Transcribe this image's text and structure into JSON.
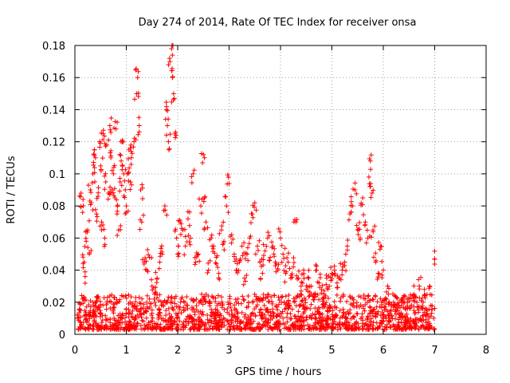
{
  "chart_data": {
    "type": "scatter",
    "title": "Day 274 of 2014, Rate Of TEC Index for receiver onsa",
    "xlabel": "GPS time / hours",
    "ylabel": "ROTI / TECUs",
    "xlim": [
      0,
      8
    ],
    "ylim": [
      0,
      0.18
    ],
    "xticks": [
      0,
      1,
      2,
      3,
      4,
      5,
      6,
      7,
      8
    ],
    "yticks": [
      0,
      0.02,
      0.04,
      0.06,
      0.08,
      0.1,
      0.12,
      0.14,
      0.16,
      0.18
    ],
    "xtick_labels": [
      "0",
      "1",
      "2",
      "3",
      "4",
      "5",
      "6",
      "7",
      "8"
    ],
    "ytick_labels": [
      "0",
      "0.02",
      "0.04",
      "0.06",
      "0.08",
      "0.1",
      "0.12",
      "0.14",
      "0.16",
      "0.18"
    ],
    "grid": true,
    "marker": "+",
    "color": "#ff0000",
    "series": [
      {
        "name": "ROTI",
        "points": [
          [
            0.05,
            0.012
          ],
          [
            0.1,
            0.015
          ],
          [
            0.12,
            0.088
          ],
          [
            0.15,
            0.076
          ],
          [
            0.18,
            0.045
          ],
          [
            0.2,
            0.036
          ],
          [
            0.22,
            0.058
          ],
          [
            0.25,
            0.065
          ],
          [
            0.28,
            0.05
          ],
          [
            0.3,
            0.09
          ],
          [
            0.32,
            0.082
          ],
          [
            0.35,
            0.1
          ],
          [
            0.38,
            0.115
          ],
          [
            0.4,
            0.11
          ],
          [
            0.42,
            0.075
          ],
          [
            0.45,
            0.086
          ],
          [
            0.48,
            0.12
          ],
          [
            0.5,
            0.105
          ],
          [
            0.52,
            0.07
          ],
          [
            0.55,
            0.125
          ],
          [
            0.58,
            0.06
          ],
          [
            0.6,
            0.095
          ],
          [
            0.62,
            0.118
          ],
          [
            0.65,
            0.088
          ],
          [
            0.68,
            0.13
          ],
          [
            0.7,
            0.11
          ],
          [
            0.72,
            0.09
          ],
          [
            0.75,
            0.1
          ],
          [
            0.78,
            0.085
          ],
          [
            0.8,
            0.128
          ],
          [
            0.82,
            0.075
          ],
          [
            0.85,
            0.065
          ],
          [
            0.88,
            0.095
          ],
          [
            0.9,
            0.108
          ],
          [
            0.92,
            0.12
          ],
          [
            0.95,
            0.1
          ],
          [
            0.98,
            0.09
          ],
          [
            1.0,
            0.08
          ],
          [
            1.02,
            0.1
          ],
          [
            1.05,
            0.115
          ],
          [
            1.08,
            0.095
          ],
          [
            1.1,
            0.11
          ],
          [
            1.15,
            0.12
          ],
          [
            1.2,
            0.15
          ],
          [
            1.22,
            0.16
          ],
          [
            1.25,
            0.13
          ],
          [
            1.28,
            0.09
          ],
          [
            1.3,
            0.07
          ],
          [
            1.35,
            0.045
          ],
          [
            1.4,
            0.04
          ],
          [
            1.45,
            0.048
          ],
          [
            1.5,
            0.03
          ],
          [
            1.55,
            0.025
          ],
          [
            1.6,
            0.035
          ],
          [
            1.65,
            0.045
          ],
          [
            1.7,
            0.05
          ],
          [
            1.75,
            0.08
          ],
          [
            1.78,
            0.14
          ],
          [
            1.8,
            0.13
          ],
          [
            1.82,
            0.12
          ],
          [
            1.85,
            0.17
          ],
          [
            1.88,
            0.178
          ],
          [
            1.9,
            0.16
          ],
          [
            1.92,
            0.15
          ],
          [
            1.95,
            0.125
          ],
          [
            1.98,
            0.06
          ],
          [
            2.0,
            0.05
          ],
          [
            2.05,
            0.07
          ],
          [
            2.1,
            0.065
          ],
          [
            2.15,
            0.055
          ],
          [
            2.2,
            0.072
          ],
          [
            2.25,
            0.06
          ],
          [
            2.3,
            0.1
          ],
          [
            2.35,
            0.045
          ],
          [
            2.4,
            0.05
          ],
          [
            2.45,
            0.08
          ],
          [
            2.5,
            0.112
          ],
          [
            2.52,
            0.085
          ],
          [
            2.55,
            0.07
          ],
          [
            2.6,
            0.04
          ],
          [
            2.65,
            0.06
          ],
          [
            2.7,
            0.055
          ],
          [
            2.75,
            0.048
          ],
          [
            2.8,
            0.038
          ],
          [
            2.85,
            0.065
          ],
          [
            2.9,
            0.058
          ],
          [
            2.95,
            0.08
          ],
          [
            3.0,
            0.094
          ],
          [
            3.05,
            0.062
          ],
          [
            3.1,
            0.05
          ],
          [
            3.15,
            0.04
          ],
          [
            3.2,
            0.045
          ],
          [
            3.25,
            0.055
          ],
          [
            3.3,
            0.035
          ],
          [
            3.35,
            0.05
          ],
          [
            3.4,
            0.06
          ],
          [
            3.45,
            0.075
          ],
          [
            3.5,
            0.082
          ],
          [
            3.55,
            0.055
          ],
          [
            3.6,
            0.045
          ],
          [
            3.65,
            0.038
          ],
          [
            3.7,
            0.052
          ],
          [
            3.75,
            0.06
          ],
          [
            3.8,
            0.048
          ],
          [
            3.85,
            0.055
          ],
          [
            3.9,
            0.045
          ],
          [
            3.95,
            0.04
          ],
          [
            4.0,
            0.06
          ],
          [
            4.05,
            0.05
          ],
          [
            4.1,
            0.038
          ],
          [
            4.15,
            0.045
          ],
          [
            4.2,
            0.035
          ],
          [
            4.25,
            0.042
          ],
          [
            4.3,
            0.07
          ],
          [
            4.35,
            0.035
          ],
          [
            4.4,
            0.03
          ],
          [
            4.45,
            0.04
          ],
          [
            4.5,
            0.028
          ],
          [
            4.55,
            0.035
          ],
          [
            4.6,
            0.03
          ],
          [
            4.65,
            0.025
          ],
          [
            4.7,
            0.04
          ],
          [
            4.75,
            0.032
          ],
          [
            4.8,
            0.028
          ],
          [
            4.85,
            0.025
          ],
          [
            4.9,
            0.035
          ],
          [
            4.95,
            0.03
          ],
          [
            5.0,
            0.038
          ],
          [
            5.05,
            0.04
          ],
          [
            5.1,
            0.032
          ],
          [
            5.15,
            0.035
          ],
          [
            5.2,
            0.04
          ],
          [
            5.25,
            0.045
          ],
          [
            5.3,
            0.055
          ],
          [
            5.35,
            0.075
          ],
          [
            5.4,
            0.08
          ],
          [
            5.45,
            0.09
          ],
          [
            5.5,
            0.065
          ],
          [
            5.55,
            0.06
          ],
          [
            5.6,
            0.085
          ],
          [
            5.65,
            0.07
          ],
          [
            5.7,
            0.06
          ],
          [
            5.72,
            0.098
          ],
          [
            5.75,
            0.108
          ],
          [
            5.78,
            0.088
          ],
          [
            5.8,
            0.065
          ],
          [
            5.85,
            0.045
          ],
          [
            5.9,
            0.038
          ],
          [
            5.95,
            0.055
          ],
          [
            6.0,
            0.04
          ],
          [
            6.1,
            0.025
          ],
          [
            6.2,
            0.02
          ],
          [
            6.3,
            0.018
          ],
          [
            6.4,
            0.02
          ],
          [
            6.5,
            0.022
          ],
          [
            6.6,
            0.025
          ],
          [
            6.7,
            0.03
          ],
          [
            6.8,
            0.028
          ],
          [
            6.9,
            0.03
          ],
          [
            7.0,
            0.047
          ]
        ]
      }
    ],
    "baseline_band": {
      "x_range": [
        0.05,
        7.0
      ],
      "y_range": [
        0.003,
        0.025
      ],
      "count": 1600,
      "seed": 274
    }
  }
}
